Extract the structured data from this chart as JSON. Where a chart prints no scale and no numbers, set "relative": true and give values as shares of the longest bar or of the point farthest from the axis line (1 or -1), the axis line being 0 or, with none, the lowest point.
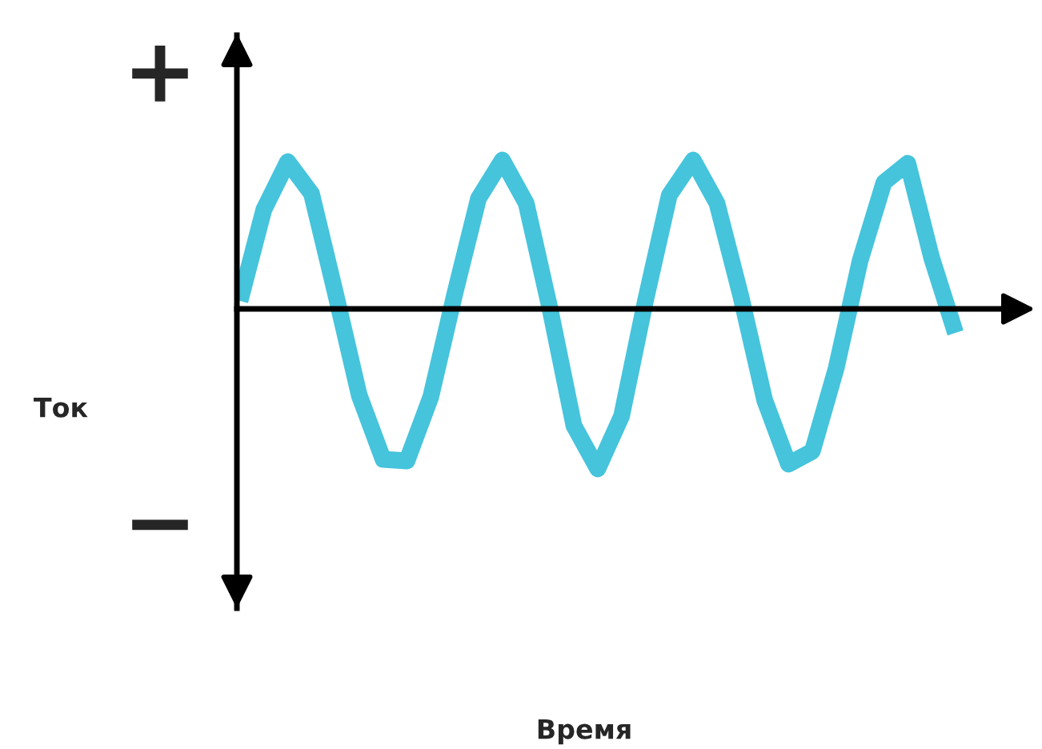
{
  "chart_data": {
    "type": "line",
    "relative": true,
    "annotations": [
      "+",
      "−",
      "Ток",
      "Время"
    ],
    "categories": [
      null,
      null,
      null,
      null,
      null,
      null,
      null,
      null,
      null,
      null,
      null,
      null,
      null,
      null,
      null,
      null,
      null,
      null,
      null,
      null,
      null,
      null,
      null,
      null,
      null,
      null,
      null,
      null,
      null,
      null,
      null
    ],
    "series": [
      {
        "color": "#45c4dc",
        "values": [
          0.05,
          0.62,
          0.92,
          0.72,
          0.1,
          -0.54,
          -0.94,
          -0.95,
          -0.55,
          0.09,
          0.69,
          0.93,
          0.66,
          0,
          -0.73,
          -1,
          -0.67,
          0.05,
          0.71,
          0.93,
          0.66,
          0.08,
          -0.57,
          -0.97,
          -0.89,
          -0.37,
          0.3,
          0.79,
          0.91,
          0.32,
          -0.15
        ]
      }
    ]
  }
}
